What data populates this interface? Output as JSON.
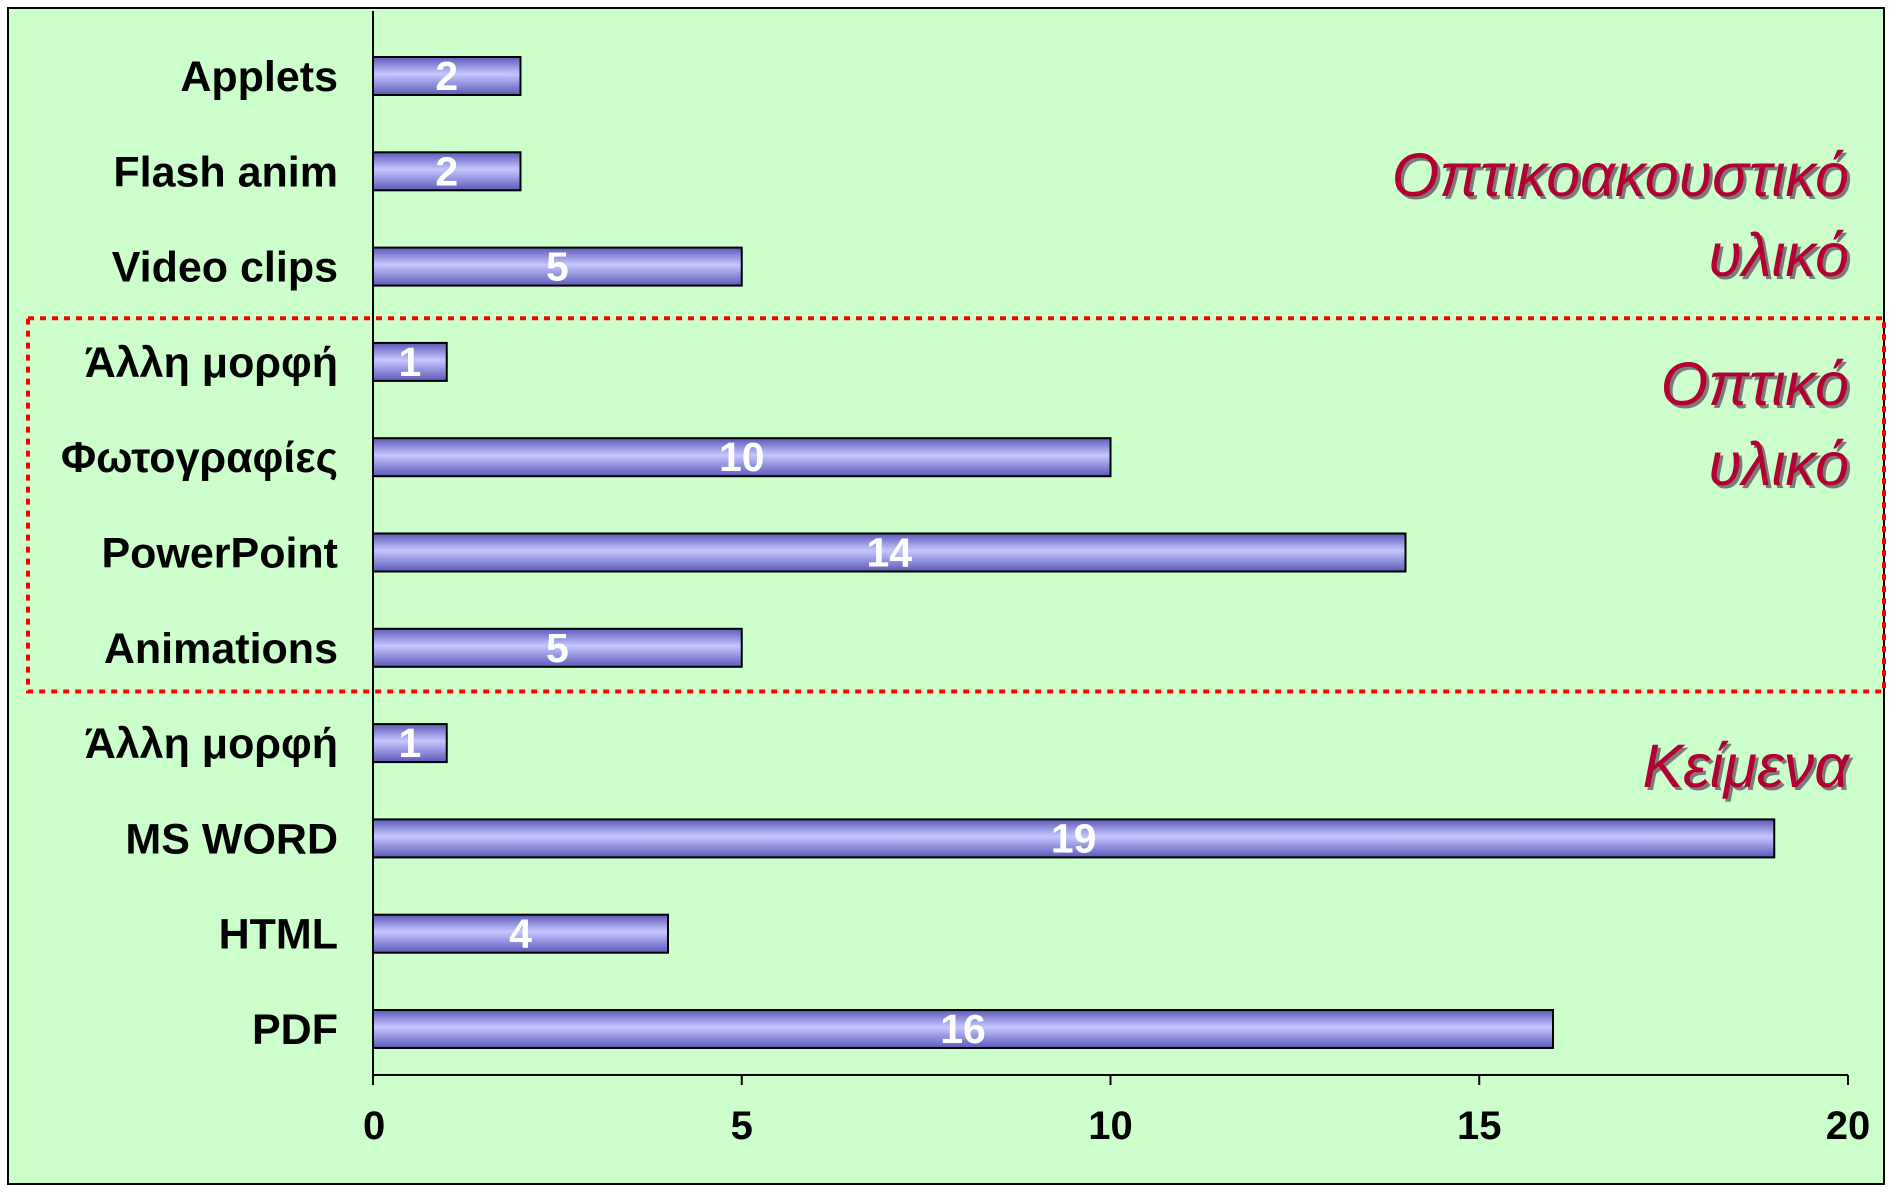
{
  "chart_data": {
    "type": "bar",
    "orientation": "horizontal",
    "categories": [
      "Applets",
      "Flash anim",
      "Video clips",
      "Άλλη μορφή",
      "Φωτογραφίες",
      "PowerPoint",
      "Animations",
      "Άλλη μορφή",
      "MS WORD",
      "HTML",
      "PDF"
    ],
    "values": [
      2,
      2,
      5,
      1,
      10,
      14,
      5,
      1,
      19,
      4,
      16
    ],
    "xlim": [
      0,
      20
    ],
    "xticks": [
      "0",
      "5",
      "10",
      "15",
      "20"
    ],
    "title": "",
    "xlabel": "",
    "ylabel": "",
    "grid": false,
    "data_labels": true,
    "groups": [
      {
        "label_lines": [
          "Οπτικοακουστικό",
          "υλικό"
        ],
        "members": [
          "Applets",
          "Flash anim",
          "Video clips"
        ]
      },
      {
        "label_lines": [
          "Οπτικό",
          "υλικό"
        ],
        "members": [
          "Άλλη μορφή",
          "Φωτογραφίες",
          "PowerPoint",
          "Animations"
        ],
        "highlighted": true
      },
      {
        "label_lines": [
          "Κείμενα"
        ],
        "members": [
          "Άλλη μορφή",
          "MS WORD",
          "HTML",
          "PDF"
        ]
      }
    ]
  },
  "colors": {
    "background": "#ccffcc",
    "bar_fill": "#8f8ff0",
    "bar_highlight": "#c6c6ff",
    "bar_shadow": "#5a5ab8",
    "bar_stroke": "#000000",
    "group_label": "#b30030",
    "group_label_shadow": "#7a7a7a",
    "highlight_box": "#ff0000"
  }
}
